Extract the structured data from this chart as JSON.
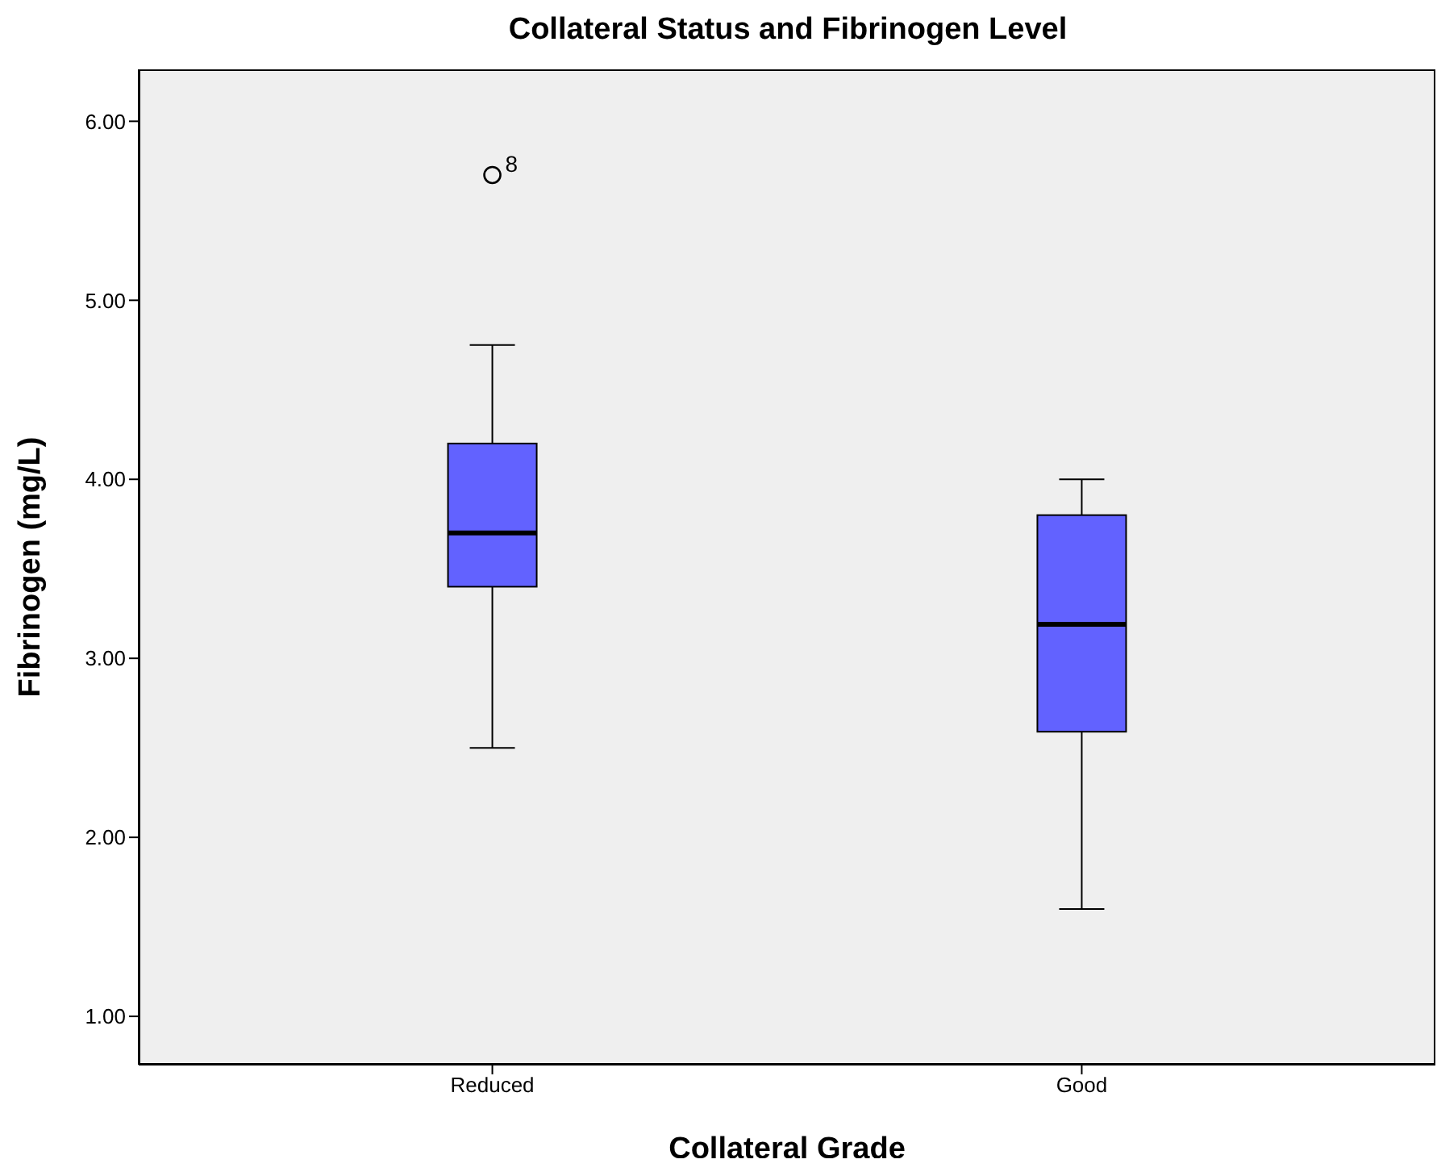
{
  "chart_data": {
    "type": "box",
    "title": "Collateral Status and Fibrinogen Level",
    "xlabel": "Collateral Grade",
    "ylabel": "Fibrinogen (mg/L)",
    "categories": [
      "Reduced",
      "Good"
    ],
    "color": "#6262ff",
    "boxes": [
      {
        "low": 2.5,
        "q1": 3.4,
        "median": 3.7,
        "q3": 4.2,
        "high": 4.75,
        "outliers": [
          5.7
        ]
      },
      {
        "low": 1.6,
        "q1": 2.59,
        "median": 3.19,
        "q3": 3.8,
        "high": 4.0
      }
    ],
    "ylim": [
      0.73,
      6.29
    ],
    "yticks": [
      {
        "value": 1,
        "label": "1.00"
      },
      {
        "value": 2,
        "label": "2.00"
      },
      {
        "value": 3,
        "label": "3.00"
      },
      {
        "value": 4,
        "label": "4.00"
      },
      {
        "value": 5,
        "label": "5.00"
      },
      {
        "value": 6,
        "label": "6.00"
      }
    ],
    "grid": false,
    "annotations": [
      "8"
    ]
  }
}
